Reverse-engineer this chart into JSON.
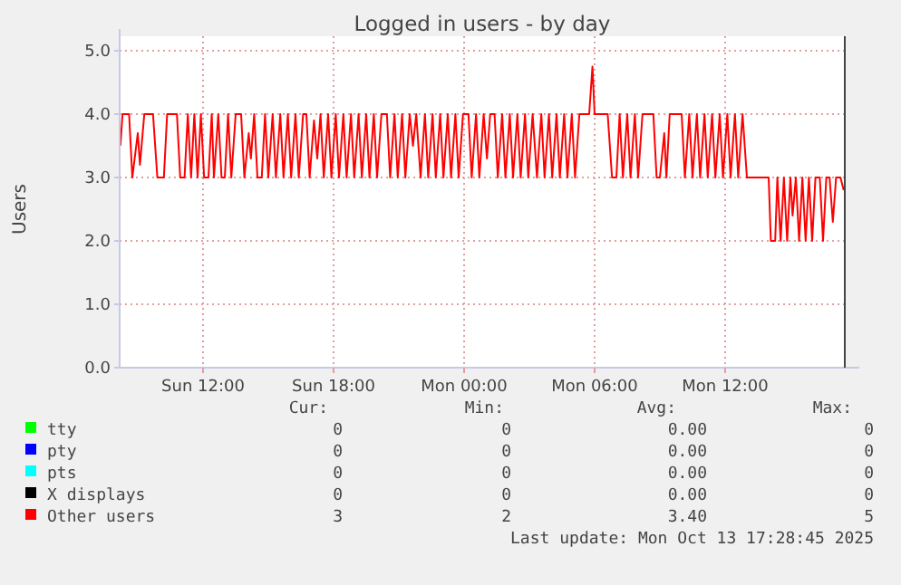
{
  "chart_data": {
    "type": "line",
    "title": "Logged in users - by day",
    "ylabel": "Users",
    "xlim": [
      "2025-10-12T08:10",
      "2025-10-13T17:30"
    ],
    "xticks": [
      {
        "value": "2025-10-12T12:00",
        "label": "Sun 12:00"
      },
      {
        "value": "2025-10-12T18:00",
        "label": "Sun 18:00"
      },
      {
        "value": "2025-10-13T00:00",
        "label": "Mon 00:00"
      },
      {
        "value": "2025-10-13T06:00",
        "label": "Mon 06:00"
      },
      {
        "value": "2025-10-13T12:00",
        "label": "Mon 12:00"
      }
    ],
    "ylim": [
      0,
      5
    ],
    "yticks": [
      {
        "value": 0,
        "label": "0.0"
      },
      {
        "value": 1,
        "label": "1.0"
      },
      {
        "value": 2,
        "label": "2.0"
      },
      {
        "value": 3,
        "label": "3.0"
      },
      {
        "value": 4,
        "label": "4.0"
      },
      {
        "value": 5,
        "label": "5.0"
      }
    ],
    "grid": true,
    "legend": "bottom",
    "marker": "none",
    "line_style": "solid",
    "series": [
      {
        "name": "tty",
        "color": "#00ff00"
      },
      {
        "name": "pty",
        "color": "#0000ff"
      },
      {
        "name": "pts",
        "color": "#00ffff"
      },
      {
        "name": "X displays",
        "color": "#000000"
      },
      {
        "name": "Other users",
        "color": "#ff0000",
        "x": [
          "2025-10-12T08:12",
          "2025-10-12T08:18",
          "2025-10-12T08:36",
          "2025-10-12T08:45",
          "2025-10-12T09:00",
          "2025-10-12T09:06",
          "2025-10-12T09:18",
          "2025-10-12T09:42",
          "2025-10-12T09:54",
          "2025-10-12T10:12",
          "2025-10-12T10:21",
          "2025-10-12T10:48",
          "2025-10-12T10:57",
          "2025-10-12T11:09",
          "2025-10-12T11:18",
          "2025-10-12T11:27",
          "2025-10-12T11:36",
          "2025-10-12T11:45",
          "2025-10-12T11:54",
          "2025-10-12T12:03",
          "2025-10-12T12:15",
          "2025-10-12T12:24",
          "2025-10-12T12:30",
          "2025-10-12T12:42",
          "2025-10-12T12:51",
          "2025-10-12T13:00",
          "2025-10-12T13:09",
          "2025-10-12T13:18",
          "2025-10-12T13:30",
          "2025-10-12T13:45",
          "2025-10-12T13:54",
          "2025-10-12T14:06",
          "2025-10-12T14:12",
          "2025-10-12T14:21",
          "2025-10-12T14:30",
          "2025-10-12T14:42",
          "2025-10-12T14:51",
          "2025-10-12T15:00",
          "2025-10-12T15:12",
          "2025-10-12T15:21",
          "2025-10-12T15:33",
          "2025-10-12T15:42",
          "2025-10-12T15:54",
          "2025-10-12T16:03",
          "2025-10-12T16:15",
          "2025-10-12T16:24",
          "2025-10-12T16:36",
          "2025-10-12T16:45",
          "2025-10-12T16:54",
          "2025-10-12T17:06",
          "2025-10-12T17:15",
          "2025-10-12T17:24",
          "2025-10-12T17:33",
          "2025-10-12T17:45",
          "2025-10-12T17:54",
          "2025-10-12T18:06",
          "2025-10-12T18:15",
          "2025-10-12T18:27",
          "2025-10-12T18:36",
          "2025-10-12T18:48",
          "2025-10-12T18:57",
          "2025-10-12T19:09",
          "2025-10-12T19:18",
          "2025-10-12T19:30",
          "2025-10-12T19:39",
          "2025-10-12T19:51",
          "2025-10-12T20:00",
          "2025-10-12T20:12",
          "2025-10-12T20:27",
          "2025-10-12T20:36",
          "2025-10-12T20:48",
          "2025-10-12T20:57",
          "2025-10-12T21:09",
          "2025-10-12T21:18",
          "2025-10-12T21:30",
          "2025-10-12T21:39",
          "2025-10-12T21:48",
          "2025-10-12T22:00",
          "2025-10-12T22:12",
          "2025-10-12T22:21",
          "2025-10-12T22:33",
          "2025-10-12T22:42",
          "2025-10-12T22:54",
          "2025-10-12T23:03",
          "2025-10-12T23:15",
          "2025-10-12T23:24",
          "2025-10-12T23:36",
          "2025-10-12T23:45",
          "2025-10-12T23:57",
          "2025-10-13T00:12",
          "2025-10-13T00:21",
          "2025-10-13T00:33",
          "2025-10-13T00:42",
          "2025-10-13T00:54",
          "2025-10-13T01:03",
          "2025-10-13T01:12",
          "2025-10-13T01:24",
          "2025-10-13T01:33",
          "2025-10-13T01:45",
          "2025-10-13T01:54",
          "2025-10-13T02:06",
          "2025-10-13T02:15",
          "2025-10-13T02:27",
          "2025-10-13T02:36",
          "2025-10-13T02:48",
          "2025-10-13T02:57",
          "2025-10-13T03:09",
          "2025-10-13T03:21",
          "2025-10-13T03:33",
          "2025-10-13T03:42",
          "2025-10-13T03:54",
          "2025-10-13T04:03",
          "2025-10-13T04:15",
          "2025-10-13T04:24",
          "2025-10-13T04:36",
          "2025-10-13T04:45",
          "2025-10-13T04:57",
          "2025-10-13T05:06",
          "2025-10-13T05:18",
          "2025-10-13T05:30",
          "2025-10-13T05:45",
          "2025-10-13T05:54",
          "2025-10-13T06:00",
          "2025-10-13T06:36",
          "2025-10-13T06:48",
          "2025-10-13T07:00",
          "2025-10-13T07:09",
          "2025-10-13T07:18",
          "2025-10-13T07:30",
          "2025-10-13T07:39",
          "2025-10-13T07:51",
          "2025-10-13T08:00",
          "2025-10-13T08:12",
          "2025-10-13T08:42",
          "2025-10-13T08:51",
          "2025-10-13T09:00",
          "2025-10-13T09:12",
          "2025-10-13T09:18",
          "2025-10-13T09:27",
          "2025-10-13T10:00",
          "2025-10-13T10:09",
          "2025-10-13T10:21",
          "2025-10-13T10:30",
          "2025-10-13T10:42",
          "2025-10-13T10:51",
          "2025-10-13T11:03",
          "2025-10-13T11:12",
          "2025-10-13T11:24",
          "2025-10-13T11:33",
          "2025-10-13T11:45",
          "2025-10-13T11:54",
          "2025-10-13T12:06",
          "2025-10-13T12:15",
          "2025-10-13T12:27",
          "2025-10-13T12:36",
          "2025-10-13T12:48",
          "2025-10-13T13:00",
          "2025-10-13T13:06",
          "2025-10-13T14:00",
          "2025-10-13T14:06",
          "2025-10-13T14:18",
          "2025-10-13T14:24",
          "2025-10-13T14:33",
          "2025-10-13T14:42",
          "2025-10-13T14:51",
          "2025-10-13T15:00",
          "2025-10-13T15:06",
          "2025-10-13T15:15",
          "2025-10-13T15:24",
          "2025-10-13T15:33",
          "2025-10-13T15:42",
          "2025-10-13T15:51",
          "2025-10-13T16:00",
          "2025-10-13T16:09",
          "2025-10-13T16:21",
          "2025-10-13T16:30",
          "2025-10-13T16:39",
          "2025-10-13T16:48",
          "2025-10-13T16:57",
          "2025-10-13T17:06",
          "2025-10-13T17:18",
          "2025-10-13T17:27"
        ],
        "values": [
          3.5,
          4,
          4,
          3,
          3.7,
          3.2,
          4,
          4,
          3,
          3,
          4,
          4,
          3,
          3,
          4,
          3,
          4,
          3,
          4,
          3,
          3,
          4,
          3,
          4,
          3,
          3,
          4,
          3,
          4,
          4,
          3,
          3.7,
          3.3,
          4,
          3,
          3,
          4,
          3,
          4,
          3,
          4,
          3,
          4,
          3,
          4,
          3,
          4,
          4,
          3,
          3.9,
          3.3,
          4,
          3,
          4,
          3,
          4,
          3,
          4,
          3,
          4,
          3,
          4,
          3,
          4,
          3,
          4,
          3,
          4,
          4,
          3,
          4,
          3,
          4,
          3,
          4,
          3.5,
          4,
          3,
          4,
          3,
          4,
          3,
          4,
          3,
          4,
          3,
          4,
          3,
          4,
          4,
          3,
          4,
          3,
          4,
          3.3,
          4,
          4,
          3,
          4,
          3,
          4,
          3,
          4,
          3,
          4,
          3,
          4,
          3,
          4,
          3,
          4,
          3,
          4,
          3,
          4,
          3,
          4,
          3,
          4,
          4,
          4,
          4.75,
          4,
          4,
          3,
          3,
          4,
          3,
          4,
          3,
          4,
          3,
          4,
          4,
          3,
          3,
          3.7,
          3,
          4,
          4,
          3,
          4,
          3,
          4,
          3,
          4,
          3,
          4,
          3,
          4,
          3,
          4,
          3,
          4,
          3,
          4,
          3,
          3,
          3,
          2,
          2,
          3,
          2,
          3,
          2,
          3,
          2.4,
          3,
          2,
          3,
          2,
          3,
          2,
          3,
          3,
          2,
          3,
          3,
          2.3,
          3,
          3,
          2.8
        ]
      }
    ],
    "annotations": [
      "Cur:",
      "Min:",
      "Avg:",
      "Max:",
      "0",
      "0",
      "0.00",
      "0",
      "0",
      "0",
      "0.00",
      "0",
      "0",
      "0",
      "0.00",
      "0",
      "0",
      "0",
      "0.00",
      "0",
      "3",
      "2",
      "3.40",
      "5",
      "Last update: Mon Oct 13 17:28:45 2025"
    ]
  }
}
